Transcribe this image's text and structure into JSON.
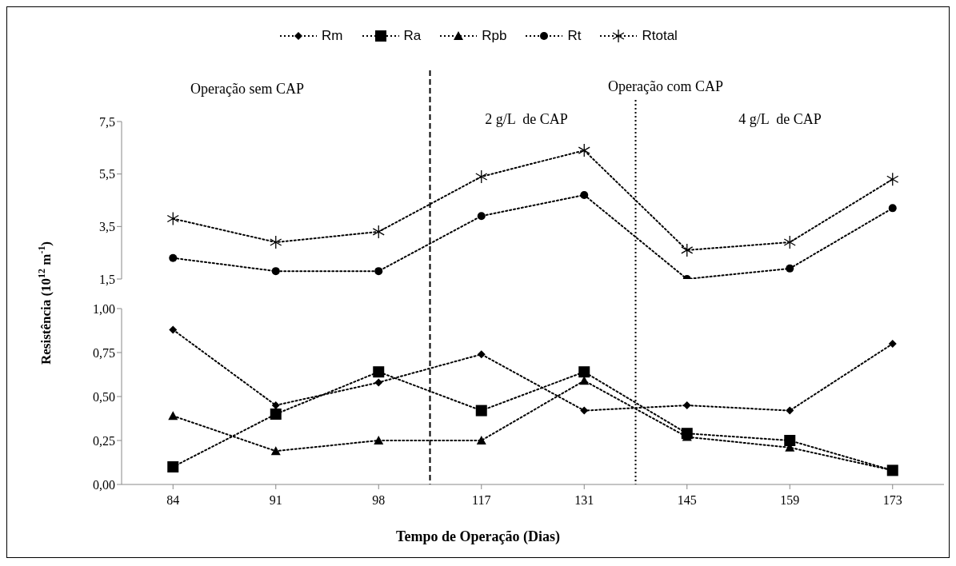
{
  "chart_data": [
    {
      "type": "line",
      "categories": [
        "84",
        "91",
        "98",
        "117",
        "131",
        "145",
        "159",
        "173"
      ],
      "series": [
        {
          "name": "Rt",
          "color": "#000000",
          "marker": "circle",
          "values": [
            2.3,
            1.8,
            1.8,
            3.9,
            4.7,
            1.5,
            1.9,
            4.2
          ]
        },
        {
          "name": "Rtotal",
          "color": "#000000",
          "marker": "cross",
          "values": [
            3.8,
            2.9,
            3.3,
            5.4,
            6.4,
            2.6,
            2.9,
            5.3
          ]
        }
      ],
      "ylim": [
        1.5,
        7.5
      ],
      "yticks": [
        {
          "value": 1.5,
          "label": "1,5"
        },
        {
          "value": 3.5,
          "label": "3,5"
        },
        {
          "value": 5.5,
          "label": "5,5"
        },
        {
          "value": 7.5,
          "label": "7,5"
        }
      ],
      "tick_labels": "y",
      "line_style": "dotted",
      "legend": "top",
      "annotations": [
        "Operação sem CAP",
        "Operação com CAP",
        "2 g/L  de CAP",
        "4 g/L  de CAP"
      ]
    },
    {
      "type": "line",
      "categories": [
        "84",
        "91",
        "98",
        "117",
        "131",
        "145",
        "159",
        "173"
      ],
      "series": [
        {
          "name": "Rm",
          "color": "#000000",
          "marker": "diamond",
          "values": [
            0.88,
            0.45,
            0.58,
            0.74,
            0.42,
            0.45,
            0.42,
            0.8
          ]
        },
        {
          "name": "Ra",
          "color": "#000000",
          "marker": "square",
          "values": [
            0.1,
            0.4,
            0.64,
            0.42,
            0.64,
            0.29,
            0.25,
            0.08
          ]
        },
        {
          "name": "Rpb",
          "color": "#000000",
          "marker": "triangle",
          "values": [
            0.39,
            0.19,
            0.25,
            0.25,
            0.59,
            0.27,
            0.21,
            0.08
          ]
        }
      ],
      "ylim": [
        0,
        1
      ],
      "yticks": [
        {
          "value": 0,
          "label": "0,00"
        },
        {
          "value": 0.25,
          "label": "0,25"
        },
        {
          "value": 0.5,
          "label": "0,50"
        },
        {
          "value": 0.75,
          "label": "0,75"
        },
        {
          "value": 1,
          "label": "1,00"
        }
      ],
      "line_style": "dotted",
      "legend": "top",
      "xlabel": "Tempo de Operação (Dias)",
      "ylabel": "Resistência (10$^{12}$ m$^{-1}$)"
    }
  ]
}
